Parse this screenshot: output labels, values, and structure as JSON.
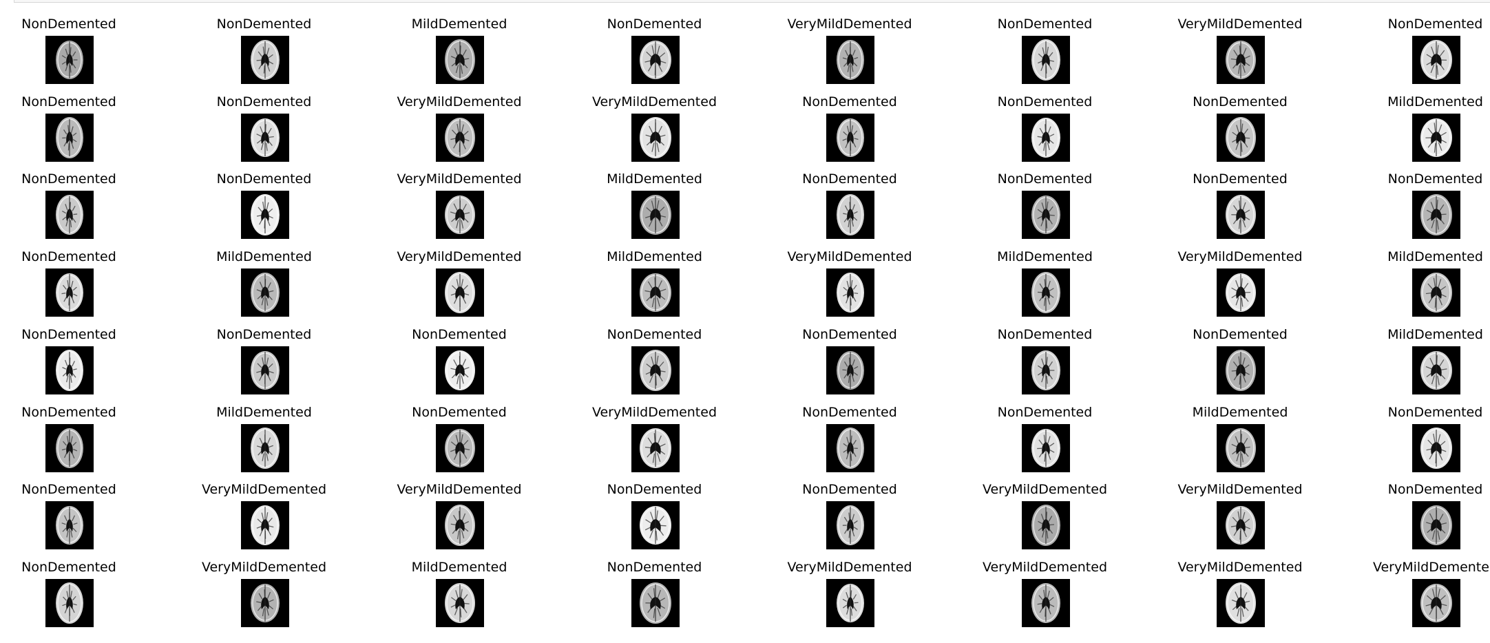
{
  "grid": {
    "columns": 8,
    "rows": [
      [
        "NonDemented",
        "NonDemented",
        "MildDemented",
        "NonDemented",
        "VeryMildDemented",
        "NonDemented",
        "VeryMildDemented",
        "NonDemented"
      ],
      [
        "NonDemented",
        "NonDemented",
        "VeryMildDemented",
        "VeryMildDemented",
        "NonDemented",
        "NonDemented",
        "NonDemented",
        "MildDemented"
      ],
      [
        "NonDemented",
        "NonDemented",
        "VeryMildDemented",
        "MildDemented",
        "NonDemented",
        "NonDemented",
        "NonDemented",
        "NonDemented"
      ],
      [
        "NonDemented",
        "MildDemented",
        "VeryMildDemented",
        "MildDemented",
        "VeryMildDemented",
        "MildDemented",
        "VeryMildDemented",
        "MildDemented"
      ],
      [
        "NonDemented",
        "NonDemented",
        "NonDemented",
        "NonDemented",
        "NonDemented",
        "NonDemented",
        "NonDemented",
        "MildDemented"
      ],
      [
        "NonDemented",
        "MildDemented",
        "NonDemented",
        "VeryMildDemented",
        "NonDemented",
        "NonDemented",
        "MildDemented",
        "NonDemented"
      ],
      [
        "NonDemented",
        "VeryMildDemented",
        "VeryMildDemented",
        "NonDemented",
        "NonDemented",
        "VeryMildDemented",
        "VeryMildDemented",
        "NonDemented"
      ],
      [
        "NonDemented",
        "VeryMildDemented",
        "MildDemented",
        "NonDemented",
        "VeryMildDemented",
        "VeryMildDemented",
        "VeryMildDemented",
        "VeryMildDemented"
      ]
    ]
  }
}
